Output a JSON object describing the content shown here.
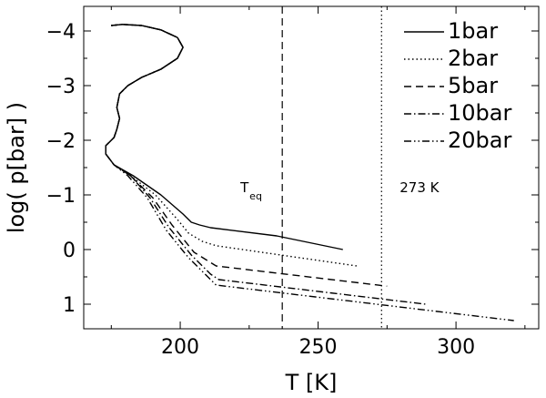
{
  "chart_data": {
    "type": "line",
    "xlabel": "T [K]",
    "ylabel": "log( p[bar] )",
    "xlim": [
      165,
      330
    ],
    "ylim": [
      1.45,
      -4.45
    ],
    "xticks": [
      200,
      250,
      300
    ],
    "yticks": [
      -4,
      -3,
      -2,
      -1,
      0,
      1
    ],
    "ytick_labels": [
      "−4",
      "−3",
      "−2",
      "−1",
      "0",
      "1"
    ],
    "legend_position": "top-right",
    "series": [
      {
        "name": "1bar",
        "dash": "solid",
        "x": [
          175,
          179,
          186,
          193,
          199,
          201,
          199,
          193,
          186,
          181,
          178,
          177,
          178,
          177,
          176,
          173,
          173,
          176,
          183,
          193,
          201,
          204,
          207,
          211,
          235,
          259
        ],
        "y": [
          -4.1,
          -4.12,
          -4.1,
          -4.02,
          -3.88,
          -3.7,
          -3.5,
          -3.3,
          -3.15,
          -3.0,
          -2.85,
          -2.6,
          -2.4,
          -2.2,
          -2.05,
          -1.9,
          -1.75,
          -1.55,
          -1.35,
          -1.0,
          -0.65,
          -0.5,
          -0.45,
          -0.4,
          -0.25,
          0.0
        ]
      },
      {
        "name": "2bar",
        "dash": "dotted",
        "x": [
          175,
          179,
          186,
          193,
          199,
          201,
          199,
          193,
          186,
          181,
          178,
          177,
          178,
          177,
          176,
          173,
          173,
          176,
          182,
          191,
          199,
          203,
          208,
          213,
          264
        ],
        "y": [
          -4.1,
          -4.12,
          -4.1,
          -4.02,
          -3.88,
          -3.7,
          -3.5,
          -3.3,
          -3.15,
          -3.0,
          -2.85,
          -2.6,
          -2.4,
          -2.2,
          -2.05,
          -1.9,
          -1.75,
          -1.55,
          -1.35,
          -1.0,
          -0.55,
          -0.3,
          -0.15,
          -0.07,
          0.3
        ]
      },
      {
        "name": "5bar",
        "dash": "dashed",
        "x": [
          175,
          179,
          186,
          193,
          199,
          201,
          199,
          193,
          186,
          181,
          178,
          177,
          178,
          177,
          176,
          173,
          173,
          176,
          182,
          190,
          197,
          205,
          213,
          275
        ],
        "y": [
          -4.1,
          -4.12,
          -4.1,
          -4.02,
          -3.88,
          -3.7,
          -3.5,
          -3.3,
          -3.15,
          -3.0,
          -2.85,
          -2.6,
          -2.4,
          -2.2,
          -2.05,
          -1.9,
          -1.75,
          -1.55,
          -1.35,
          -0.95,
          -0.45,
          0.05,
          0.3,
          0.67
        ]
      },
      {
        "name": "10bar",
        "dash": "dashdot",
        "x": [
          175,
          179,
          186,
          193,
          199,
          201,
          199,
          193,
          186,
          181,
          178,
          177,
          178,
          177,
          176,
          173,
          173,
          176,
          182,
          189,
          196,
          204,
          211,
          214,
          289
        ],
        "y": [
          -4.1,
          -4.12,
          -4.1,
          -4.02,
          -3.88,
          -3.7,
          -3.5,
          -3.3,
          -3.15,
          -3.0,
          -2.85,
          -2.6,
          -2.4,
          -2.2,
          -2.05,
          -1.9,
          -1.75,
          -1.55,
          -1.35,
          -0.95,
          -0.4,
          0.1,
          0.45,
          0.55,
          1.0
        ]
      },
      {
        "name": "20bar",
        "dash": "dashdotdot",
        "x": [
          175,
          179,
          186,
          193,
          199,
          201,
          199,
          193,
          186,
          181,
          178,
          177,
          178,
          177,
          176,
          173,
          173,
          176,
          181,
          188,
          195,
          203,
          210,
          213,
          321
        ],
        "y": [
          -4.1,
          -4.12,
          -4.1,
          -4.02,
          -3.88,
          -3.7,
          -3.5,
          -3.3,
          -3.15,
          -3.0,
          -2.85,
          -2.6,
          -2.4,
          -2.2,
          -2.05,
          -1.9,
          -1.75,
          -1.55,
          -1.35,
          -0.95,
          -0.35,
          0.15,
          0.5,
          0.65,
          1.3
        ]
      }
    ],
    "reference_lines": [
      {
        "x": 237,
        "dash": "dashed",
        "label": "T",
        "label_sub": "eq"
      },
      {
        "x": 273,
        "dash": "dotted",
        "label": "273 K"
      }
    ]
  }
}
